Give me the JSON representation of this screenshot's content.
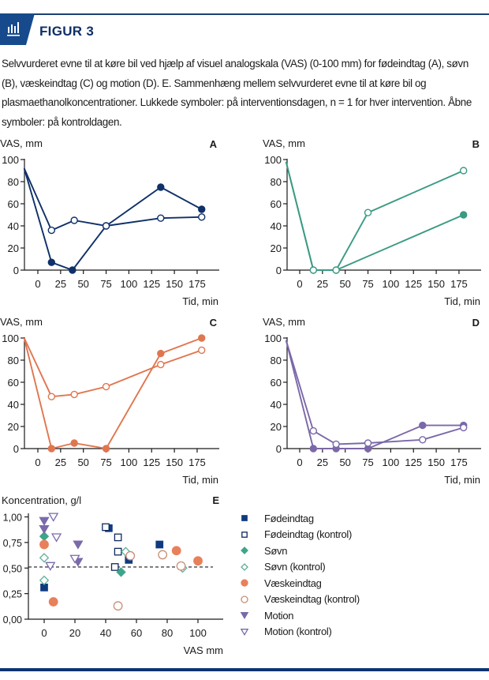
{
  "header": {
    "title": "FIGUR 3",
    "icon": "bar-chart-icon",
    "accent_color": "#0f3068"
  },
  "caption": "Selvvurderet evne til at køre bil ved hjælp af visuel analogskala (VAS) (0-100 mm) for fødeindtag (A), søvn (B), væskeindtag (C) og motion (D). E. Sammenhæng mellem selvvurderet evne til at køre bil og plasmaethanolkoncentrationer. Lukkede symboler: på interventionsdagen, n = 1 for hver intervention. Åbne symboler: på kontroldagen.",
  "chart_data": [
    {
      "panel": "A",
      "type": "line",
      "title": "",
      "ylabel": "VAS, mm",
      "xlabel": "Tid, min",
      "xlim": [
        -15,
        200
      ],
      "ylim": [
        0,
        100
      ],
      "xticks": [
        0,
        25,
        50,
        75,
        100,
        125,
        150,
        175
      ],
      "yticks": [
        0,
        20,
        40,
        60,
        80,
        100
      ],
      "color": "#0f3068",
      "series": [
        {
          "name": "Fødeindtag",
          "filled": true,
          "x": [
            -15,
            15,
            38,
            75,
            135,
            180
          ],
          "values": [
            92,
            7,
            0,
            40,
            75,
            55
          ]
        },
        {
          "name": "Fødeindtag (kontrol)",
          "filled": false,
          "x": [
            -15,
            15,
            40,
            75,
            135,
            180
          ],
          "values": [
            92,
            36,
            45,
            40,
            47,
            48
          ]
        }
      ]
    },
    {
      "panel": "B",
      "type": "line",
      "ylabel": "VAS, mm",
      "xlabel": "Tid, min",
      "xlim": [
        -15,
        200
      ],
      "ylim": [
        0,
        100
      ],
      "xticks": [
        0,
        25,
        50,
        75,
        100,
        125,
        150,
        175
      ],
      "yticks": [
        0,
        20,
        40,
        60,
        80,
        100
      ],
      "color": "#3a9a82",
      "series": [
        {
          "name": "Søvn",
          "filled": true,
          "x": [
            -15,
            15,
            40,
            180
          ],
          "values": [
            98,
            0,
            0,
            50
          ]
        },
        {
          "name": "Søvn (kontrol)",
          "filled": false,
          "x": [
            -15,
            15,
            40,
            75,
            180
          ],
          "values": [
            98,
            0,
            0,
            52,
            90
          ]
        }
      ]
    },
    {
      "panel": "C",
      "type": "line",
      "ylabel": "VAS, mm",
      "xlabel": "Tid, min",
      "xlim": [
        -15,
        200
      ],
      "ylim": [
        0,
        100
      ],
      "xticks": [
        0,
        25,
        50,
        75,
        100,
        125,
        150,
        175
      ],
      "yticks": [
        0,
        20,
        40,
        60,
        80,
        100
      ],
      "color": "#e0764f",
      "series": [
        {
          "name": "Væskeindtag",
          "filled": true,
          "x": [
            -15,
            15,
            40,
            75,
            135,
            180
          ],
          "values": [
            100,
            0,
            5,
            0,
            86,
            100
          ]
        },
        {
          "name": "Væskeindtag (kontrol)",
          "filled": false,
          "x": [
            -15,
            15,
            40,
            75,
            135,
            180
          ],
          "values": [
            100,
            47,
            49,
            56,
            76,
            89
          ]
        }
      ]
    },
    {
      "panel": "D",
      "type": "line",
      "ylabel": "VAS, mm",
      "xlabel": "Tid, min",
      "xlim": [
        -15,
        200
      ],
      "ylim": [
        0,
        100
      ],
      "xticks": [
        0,
        25,
        50,
        75,
        100,
        125,
        150,
        175
      ],
      "yticks": [
        0,
        20,
        40,
        60,
        80,
        100
      ],
      "color": "#7b68a8",
      "series": [
        {
          "name": "Motion",
          "filled": true,
          "x": [
            -15,
            15,
            40,
            75,
            135,
            180
          ],
          "values": [
            98,
            0,
            0,
            0,
            21,
            21
          ]
        },
        {
          "name": "Motion (kontrol)",
          "filled": false,
          "x": [
            -15,
            15,
            40,
            75,
            135,
            180
          ],
          "values": [
            98,
            16,
            4,
            5,
            8,
            19
          ]
        }
      ]
    },
    {
      "panel": "E",
      "type": "scatter",
      "ylabel": "Koncentration, g/l",
      "xlabel": "VAS mm",
      "xlim": [
        -10,
        117
      ],
      "ylim": [
        0,
        1.05
      ],
      "xticks": [
        0,
        20,
        40,
        60,
        80,
        100
      ],
      "yticks": [
        "0,00",
        "0,25",
        "0,50",
        "0,75",
        "1,00"
      ],
      "ytick_values": [
        0,
        0.25,
        0.5,
        0.75,
        1.0
      ],
      "reference_line": {
        "y": 0.51,
        "style": "dashed"
      },
      "legend_position": "right",
      "series": [
        {
          "name": "Fødeindtag",
          "marker": "square",
          "filled": true,
          "color": "#0f3a80",
          "points": [
            [
              0,
              0.31
            ],
            [
              42,
              0.89
            ],
            [
              55,
              0.58
            ],
            [
              75,
              0.73
            ]
          ]
        },
        {
          "name": "Fødeindtag (kontrol)",
          "marker": "square",
          "filled": false,
          "color": "#0f2a5c",
          "points": [
            [
              40,
              0.9
            ],
            [
              48,
              0.8
            ],
            [
              48,
              0.66
            ],
            [
              46,
              0.51
            ]
          ]
        },
        {
          "name": "Søvn",
          "marker": "diamond",
          "filled": true,
          "color": "#3ea58a",
          "points": [
            [
              0,
              0.81
            ],
            [
              50,
              0.46
            ]
          ]
        },
        {
          "name": "Søvn (kontrol)",
          "marker": "diamond",
          "filled": false,
          "color": "#5fae99",
          "points": [
            [
              0,
              0.6
            ],
            [
              0,
              0.38
            ],
            [
              53,
              0.66
            ],
            [
              90,
              0.5
            ]
          ]
        },
        {
          "name": "Væskeindtag",
          "marker": "circle",
          "filled": true,
          "color": "#e8805a",
          "points": [
            [
              0,
              0.73
            ],
            [
              6,
              0.17
            ],
            [
              86,
              0.67
            ],
            [
              100,
              0.57
            ]
          ]
        },
        {
          "name": "Væskeindtag (kontrol)",
          "marker": "circle",
          "filled": false,
          "color": "#c98e74",
          "points": [
            [
              56,
              0.62
            ],
            [
              77,
              0.63
            ],
            [
              48,
              0.13
            ],
            [
              89,
              0.52
            ]
          ]
        },
        {
          "name": "Motion",
          "marker": "triangle-down",
          "filled": true,
          "color": "#7a6aaa",
          "points": [
            [
              0,
              0.96
            ],
            [
              0,
              0.88
            ],
            [
              22,
              0.73
            ],
            [
              22,
              0.56
            ]
          ]
        },
        {
          "name": "Motion (kontrol)",
          "marker": "triangle-down",
          "filled": false,
          "color": "#7a6aaa",
          "points": [
            [
              6,
              1.0
            ],
            [
              8,
              0.8
            ],
            [
              20,
              0.59
            ],
            [
              4,
              0.52
            ]
          ]
        }
      ]
    }
  ]
}
